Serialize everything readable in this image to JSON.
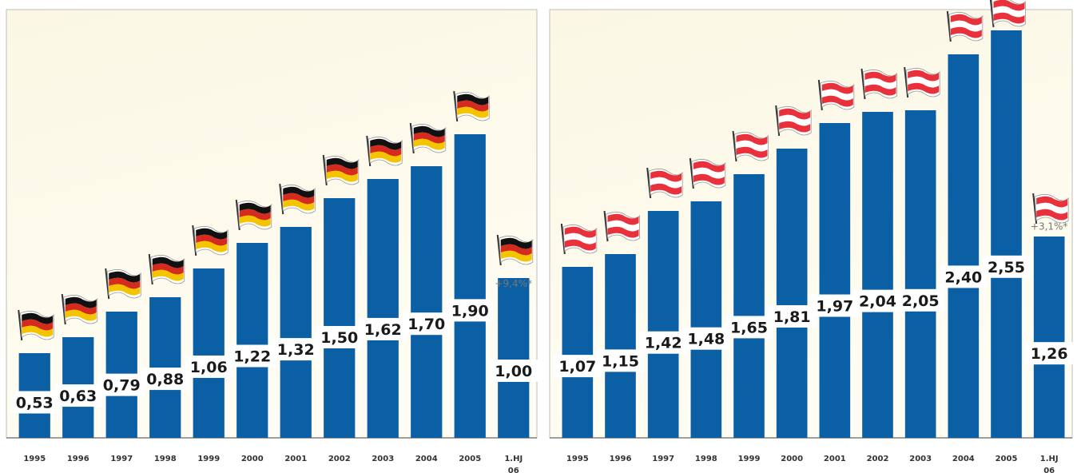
{
  "chart_data": [
    {
      "type": "bar",
      "flag": "germany-flag-icon",
      "categories": [
        "1995",
        "1996",
        "1997",
        "1998",
        "1999",
        "2000",
        "2001",
        "2002",
        "2003",
        "2004",
        "2005",
        "1.HJ 06"
      ],
      "values": [
        0.53,
        0.63,
        0.79,
        0.88,
        1.06,
        1.22,
        1.32,
        1.5,
        1.62,
        1.7,
        1.9,
        1.0
      ],
      "value_labels": [
        "0,53",
        "0,63",
        "0,79",
        "0,88",
        "1,06",
        "1,22",
        "1,32",
        "1,50",
        "1,62",
        "1,70",
        "1,90",
        "1,00"
      ],
      "annotation": "+9,4%*",
      "ylim": [
        0,
        2.6
      ],
      "colors": {
        "bar": "#0b5fa5",
        "background_top": "#fbf7e4",
        "background_bottom": "#fffdf3"
      }
    },
    {
      "type": "bar",
      "flag": "austria-flag-icon",
      "categories": [
        "1995",
        "1996",
        "1997",
        "1998",
        "1999",
        "2000",
        "2001",
        "2002",
        "2003",
        "2004",
        "2005",
        "1.HJ 06"
      ],
      "values": [
        1.07,
        1.15,
        1.42,
        1.48,
        1.65,
        1.81,
        1.97,
        2.04,
        2.05,
        2.4,
        2.55,
        1.26
      ],
      "value_labels": [
        "1,07",
        "1,15",
        "1,42",
        "1,48",
        "1,65",
        "1,81",
        "1,97",
        "2,04",
        "2,05",
        "2,40",
        "2,55",
        "1,26"
      ],
      "annotation": "+3,1%*",
      "ylim": [
        0,
        2.6
      ],
      "colors": {
        "bar": "#0b5fa5",
        "background_top": "#fbf7e4",
        "background_bottom": "#fffdf3"
      }
    }
  ]
}
